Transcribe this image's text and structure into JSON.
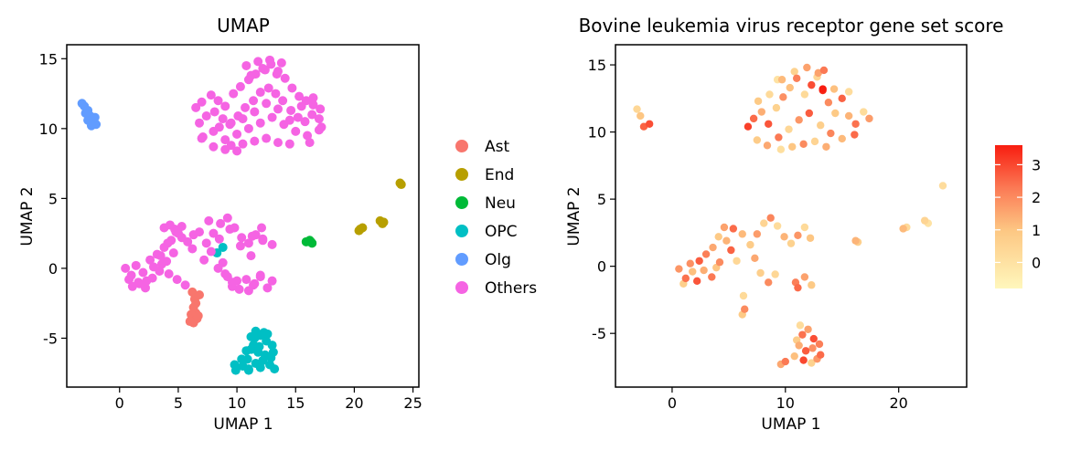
{
  "chart_data": [
    {
      "type": "scatter",
      "title": "UMAP",
      "xlabel": "UMAP 1",
      "ylabel": "UMAP 2",
      "xlim": [
        -4.5,
        25.5
      ],
      "ylim": [
        -8.5,
        16
      ],
      "xticks": [
        0,
        5,
        10,
        15,
        20,
        25
      ],
      "yticks": [
        -5,
        0,
        5,
        10,
        15
      ],
      "xtick_labels": [
        "0",
        "5",
        "10",
        "15",
        "20",
        "25"
      ],
      "ytick_labels": [
        "-5",
        "0",
        "5",
        "10",
        "15"
      ],
      "legend_position": "right",
      "series": [
        {
          "name": "Ast",
          "color": "#F8766D",
          "x": [
            6.2,
            6.4,
            6.1,
            6.5,
            6.3,
            6.6,
            6.0,
            6.7,
            6.3,
            6.4,
            6.2,
            6.8,
            6.5
          ],
          "y": [
            -3.5,
            -3.7,
            -3.3,
            -3.2,
            -3.9,
            -3.6,
            -3.8,
            -3.4,
            -2.8,
            -2.2,
            -1.7,
            -1.9,
            -2.5
          ]
        },
        {
          "name": "End",
          "color": "#B79F00",
          "x": [
            20.4,
            20.7,
            20.5,
            22.2,
            22.5,
            22.4,
            23.9,
            24.0
          ],
          "y": [
            2.7,
            2.9,
            2.8,
            3.4,
            3.3,
            3.2,
            6.1,
            6.0
          ]
        },
        {
          "name": "Neu",
          "color": "#00BA38",
          "x": [
            15.9,
            16.2,
            16.4,
            16.3
          ],
          "y": [
            1.9,
            2.0,
            1.8,
            1.9
          ]
        },
        {
          "name": "OPC",
          "color": "#00BFC4",
          "x": [
            11.5,
            12.0,
            12.5,
            13.0,
            11.2,
            11.8,
            12.4,
            13.1,
            10.9,
            11.6,
            12.2,
            12.8,
            10.5,
            11.0,
            12.0,
            13.2,
            9.8,
            10.4,
            11.4,
            12.6,
            12.9,
            11.9,
            11.2,
            10.8,
            9.9,
            11.0,
            11.6,
            12.3,
            8.3,
            8.8
          ],
          "y": [
            -5.0,
            -4.8,
            -5.2,
            -5.5,
            -5.8,
            -6.0,
            -6.2,
            -6.0,
            -6.5,
            -6.8,
            -6.6,
            -6.9,
            -7.0,
            -7.2,
            -7.1,
            -7.2,
            -6.9,
            -6.5,
            -5.5,
            -4.7,
            -6.4,
            -5.6,
            -4.9,
            -5.9,
            -7.3,
            -7.3,
            -4.5,
            -4.6,
            1.1,
            1.5
          ]
        },
        {
          "name": "Olg",
          "color": "#619CFF",
          "x": [
            -3.2,
            -3.0,
            -2.7,
            -2.5,
            -2.2,
            -2.0,
            -2.4,
            -2.7,
            -2.1,
            -2.9
          ],
          "y": [
            11.8,
            11.6,
            11.3,
            10.9,
            10.5,
            10.3,
            10.2,
            10.6,
            10.8,
            11.1
          ]
        },
        {
          "name": "Others",
          "color": "#F564E3",
          "x": [
            6.5,
            7.0,
            7.8,
            8.4,
            9.0,
            9.7,
            10.3,
            11.0,
            11.6,
            12.2,
            12.9,
            13.5,
            14.1,
            14.7,
            15.3,
            15.9,
            16.5,
            17.1,
            6.8,
            7.4,
            8.1,
            8.8,
            9.4,
            10.1,
            10.7,
            11.4,
            12.0,
            12.7,
            13.3,
            13.9,
            14.6,
            15.2,
            15.8,
            16.4,
            17.0,
            7.1,
            8.0,
            9.0,
            10.0,
            11.0,
            12.0,
            13.0,
            14.0,
            15.0,
            16.0,
            17.0,
            9.5,
            10.5,
            11.5,
            12.5,
            13.5,
            14.5,
            10.8,
            11.8,
            12.8,
            13.8,
            11.2,
            12.4,
            13.4,
            8.5,
            9.5,
            10.5,
            11.5,
            12.5,
            13.5,
            14.5,
            15.5,
            16.5,
            7.0,
            8.0,
            9.0,
            10.0,
            16.2,
            17.2,
            0.5,
            1.0,
            1.6,
            2.2,
            2.8,
            3.4,
            4.0,
            4.6,
            0.8,
            1.4,
            2.0,
            2.6,
            3.2,
            3.8,
            4.4,
            5.0,
            1.1,
            1.7,
            2.3,
            2.9,
            3.5,
            4.1,
            4.7,
            5.3,
            3.8,
            4.3,
            4.8,
            5.3,
            5.8,
            6.3,
            3.6,
            4.2,
            4.9,
            5.6,
            6.2,
            6.8,
            7.4,
            8.0,
            8.6,
            9.2,
            9.8,
            10.4,
            11.0,
            11.6,
            12.2,
            7.2,
            7.8,
            8.4,
            9.0,
            9.6,
            10.2,
            10.8,
            11.4,
            12.0,
            7.6,
            8.5,
            9.4,
            10.3,
            11.2,
            12.1,
            8.8,
            9.2,
            9.6,
            10.0,
            11.0,
            11.5,
            12.0,
            12.6,
            13.0,
            11.3,
            12.2,
            13.0
          ],
          "y": [
            11.5,
            11.9,
            12.4,
            12.0,
            11.6,
            12.5,
            13.0,
            13.5,
            13.9,
            14.3,
            14.6,
            14.1,
            13.6,
            12.9,
            12.3,
            12.0,
            11.7,
            11.4,
            10.4,
            10.9,
            11.2,
            10.7,
            10.3,
            10.9,
            11.5,
            12.0,
            12.6,
            12.9,
            12.5,
            12.0,
            11.3,
            10.8,
            10.5,
            11.0,
            10.7,
            9.4,
            9.8,
            9.2,
            9.6,
            10.0,
            10.4,
            10.8,
            10.3,
            9.8,
            9.5,
            9.9,
            8.8,
            8.9,
            9.1,
            9.3,
            9.0,
            8.9,
            14.5,
            14.8,
            14.9,
            14.7,
            13.8,
            14.2,
            13.9,
            10.1,
            10.4,
            10.7,
            11.2,
            11.8,
            11.4,
            10.6,
            11.6,
            12.2,
            9.3,
            8.7,
            8.5,
            8.4,
            9.0,
            10.1,
            0.0,
            -0.5,
            -1.0,
            -1.4,
            -0.7,
            -0.2,
            0.5,
            1.1,
            -0.8,
            0.2,
            -0.3,
            0.6,
            1.0,
            1.5,
            2.0,
            2.5,
            -1.3,
            -1.1,
            -0.9,
            0.1,
            0.9,
            1.8,
            2.8,
            3.0,
            2.9,
            3.1,
            2.6,
            2.2,
            1.9,
            2.4,
            0.3,
            -0.4,
            -0.8,
            -1.2,
            1.4,
            2.6,
            1.8,
            2.5,
            3.2,
            3.6,
            2.9,
            2.2,
            1.8,
            2.4,
            2.1,
            0.6,
            1.2,
            0.0,
            -0.4,
            -1.0,
            -1.5,
            -0.8,
            -1.2,
            -0.5,
            3.4,
            2.1,
            2.8,
            1.6,
            0.9,
            2.9,
            0.4,
            -0.6,
            -1.3,
            -0.9,
            -1.6,
            -1.1,
            -0.6,
            -1.4,
            -0.9,
            2.3,
            2.0,
            1.7
          ]
        }
      ]
    },
    {
      "type": "scatter",
      "title": "Bovine leukemia virus receptor gene set score",
      "xlabel": "UMAP 1",
      "ylabel": "UMAP 2",
      "xlim": [
        -5,
        26
      ],
      "ylim": [
        -9,
        16.5
      ],
      "xticks": [
        0,
        10,
        20
      ],
      "yticks": [
        -5,
        0,
        5,
        10,
        15
      ],
      "xtick_labels": [
        "0",
        "10",
        "20"
      ],
      "ytick_labels": [
        "-5",
        "0",
        "5",
        "10",
        "15"
      ],
      "color_scale": {
        "min_color": "#FFF7BC",
        "max_color": "#F81D10",
        "range": [
          -0.8,
          3.6
        ],
        "ticks": [
          0,
          1,
          2,
          3
        ],
        "tick_labels": [
          "0",
          "1",
          "2",
          "3"
        ]
      },
      "points": [
        {
          "x": 6.7,
          "y": 10.4,
          "v": 3.1
        },
        {
          "x": 7.2,
          "y": 11.0,
          "v": 2.5
        },
        {
          "x": 7.9,
          "y": 11.5,
          "v": 1.4
        },
        {
          "x": 8.5,
          "y": 10.6,
          "v": 2.8
        },
        {
          "x": 9.2,
          "y": 11.8,
          "v": 0.6
        },
        {
          "x": 9.8,
          "y": 12.6,
          "v": 1.9
        },
        {
          "x": 10.4,
          "y": 13.3,
          "v": 1.1
        },
        {
          "x": 11.0,
          "y": 14.0,
          "v": 2.2
        },
        {
          "x": 11.7,
          "y": 12.8,
          "v": 0.3
        },
        {
          "x": 12.3,
          "y": 13.5,
          "v": 2.9
        },
        {
          "x": 12.9,
          "y": 14.4,
          "v": 1.6
        },
        {
          "x": 13.3,
          "y": 13.1,
          "v": 3.4
        },
        {
          "x": 13.8,
          "y": 12.2,
          "v": 2.0
        },
        {
          "x": 14.4,
          "y": 11.4,
          "v": 0.9
        },
        {
          "x": 15.0,
          "y": 12.5,
          "v": 2.6
        },
        {
          "x": 15.6,
          "y": 11.2,
          "v": 1.3
        },
        {
          "x": 16.2,
          "y": 10.6,
          "v": 2.4
        },
        {
          "x": 16.9,
          "y": 11.5,
          "v": 0.2
        },
        {
          "x": 17.4,
          "y": 11.0,
          "v": 1.7
        },
        {
          "x": 7.5,
          "y": 9.4,
          "v": 0.8
        },
        {
          "x": 8.4,
          "y": 9.0,
          "v": 1.5
        },
        {
          "x": 9.4,
          "y": 9.6,
          "v": 2.3
        },
        {
          "x": 10.3,
          "y": 10.2,
          "v": 0.4
        },
        {
          "x": 11.2,
          "y": 10.9,
          "v": 1.8
        },
        {
          "x": 12.1,
          "y": 11.4,
          "v": 2.7
        },
        {
          "x": 13.1,
          "y": 10.5,
          "v": 0.7
        },
        {
          "x": 14.0,
          "y": 9.9,
          "v": 2.1
        },
        {
          "x": 15.0,
          "y": 9.5,
          "v": 1.2
        },
        {
          "x": 16.1,
          "y": 9.8,
          "v": 2.5
        },
        {
          "x": 9.6,
          "y": 8.7,
          "v": 0.1
        },
        {
          "x": 10.6,
          "y": 8.9,
          "v": 1.0
        },
        {
          "x": 11.6,
          "y": 9.1,
          "v": 2.0
        },
        {
          "x": 12.6,
          "y": 9.3,
          "v": 0.5
        },
        {
          "x": 13.6,
          "y": 8.9,
          "v": 1.4
        },
        {
          "x": 7.6,
          "y": 12.3,
          "v": 0.9
        },
        {
          "x": 8.6,
          "y": 12.8,
          "v": 0.3
        },
        {
          "x": 9.7,
          "y": 13.9,
          "v": 1.2
        },
        {
          "x": 10.8,
          "y": 14.5,
          "v": 0.6
        },
        {
          "x": 11.9,
          "y": 14.8,
          "v": 1.6
        },
        {
          "x": 12.8,
          "y": 14.1,
          "v": 0.4
        },
        {
          "x": 13.4,
          "y": 14.6,
          "v": 2.3
        },
        {
          "x": 14.3,
          "y": 13.2,
          "v": 1.1
        },
        {
          "x": 15.6,
          "y": 13.0,
          "v": 0.2
        },
        {
          "x": 13.3,
          "y": 13.2,
          "v": 3.6
        },
        {
          "x": 9.3,
          "y": 13.9,
          "v": 0.0
        },
        {
          "x": -3.1,
          "y": 11.7,
          "v": 0.4
        },
        {
          "x": -2.8,
          "y": 11.2,
          "v": 1.0
        },
        {
          "x": -2.5,
          "y": 10.4,
          "v": 2.6
        },
        {
          "x": -2.0,
          "y": 10.6,
          "v": 2.9
        },
        {
          "x": 0.6,
          "y": -0.2,
          "v": 1.8
        },
        {
          "x": 1.2,
          "y": -0.9,
          "v": 2.4
        },
        {
          "x": 1.8,
          "y": -0.4,
          "v": 1.1
        },
        {
          "x": 2.4,
          "y": 0.4,
          "v": 2.7
        },
        {
          "x": 3.0,
          "y": 0.9,
          "v": 2.2
        },
        {
          "x": 3.6,
          "y": 1.4,
          "v": 1.5
        },
        {
          "x": 4.2,
          "y": 0.3,
          "v": 2.0
        },
        {
          "x": 4.8,
          "y": 1.9,
          "v": 1.3
        },
        {
          "x": 5.4,
          "y": 2.8,
          "v": 2.5
        },
        {
          "x": 1.0,
          "y": -1.3,
          "v": 0.7
        },
        {
          "x": 1.6,
          "y": 0.2,
          "v": 1.9
        },
        {
          "x": 2.2,
          "y": -1.1,
          "v": 2.8
        },
        {
          "x": 2.8,
          "y": -0.3,
          "v": 1.4
        },
        {
          "x": 3.5,
          "y": -0.8,
          "v": 2.3
        },
        {
          "x": 4.1,
          "y": 2.2,
          "v": 0.9
        },
        {
          "x": 4.6,
          "y": 2.9,
          "v": 1.6
        },
        {
          "x": 5.2,
          "y": 1.2,
          "v": 2.6
        },
        {
          "x": 3.9,
          "y": -0.1,
          "v": 1.0
        },
        {
          "x": 5.7,
          "y": 0.4,
          "v": 0.4
        },
        {
          "x": 6.2,
          "y": 2.4,
          "v": 1.2
        },
        {
          "x": 6.9,
          "y": 1.6,
          "v": 0.8
        },
        {
          "x": 7.5,
          "y": 2.4,
          "v": 1.7
        },
        {
          "x": 8.1,
          "y": 3.2,
          "v": 0.5
        },
        {
          "x": 8.7,
          "y": 3.6,
          "v": 2.1
        },
        {
          "x": 9.3,
          "y": 3.0,
          "v": 0.2
        },
        {
          "x": 9.9,
          "y": 2.2,
          "v": 1.3
        },
        {
          "x": 10.5,
          "y": 1.7,
          "v": 0.6
        },
        {
          "x": 11.1,
          "y": 2.3,
          "v": 1.8
        },
        {
          "x": 11.7,
          "y": 2.9,
          "v": 0.3
        },
        {
          "x": 12.2,
          "y": 2.1,
          "v": 1.0
        },
        {
          "x": 7.3,
          "y": 0.6,
          "v": 1.5
        },
        {
          "x": 7.8,
          "y": -0.5,
          "v": 0.7
        },
        {
          "x": 8.5,
          "y": -1.2,
          "v": 2.0
        },
        {
          "x": 9.1,
          "y": -0.6,
          "v": 0.4
        },
        {
          "x": 10.9,
          "y": -1.2,
          "v": 2.2
        },
        {
          "x": 11.7,
          "y": -0.8,
          "v": 1.6
        },
        {
          "x": 12.3,
          "y": -1.4,
          "v": 0.9
        },
        {
          "x": 11.1,
          "y": -1.6,
          "v": 2.5
        },
        {
          "x": 6.2,
          "y": -3.6,
          "v": 0.9
        },
        {
          "x": 6.4,
          "y": -3.2,
          "v": 2.0
        },
        {
          "x": 6.3,
          "y": -2.2,
          "v": 0.3
        },
        {
          "x": 11.5,
          "y": -5.1,
          "v": 2.4
        },
        {
          "x": 12.0,
          "y": -4.7,
          "v": 1.6
        },
        {
          "x": 12.5,
          "y": -5.4,
          "v": 2.9
        },
        {
          "x": 13.0,
          "y": -5.8,
          "v": 2.2
        },
        {
          "x": 11.2,
          "y": -5.9,
          "v": 1.4
        },
        {
          "x": 11.8,
          "y": -6.3,
          "v": 2.7
        },
        {
          "x": 12.4,
          "y": -6.1,
          "v": 1.9
        },
        {
          "x": 13.1,
          "y": -6.6,
          "v": 2.5
        },
        {
          "x": 10.8,
          "y": -6.7,
          "v": 1.1
        },
        {
          "x": 11.6,
          "y": -7.0,
          "v": 3.0
        },
        {
          "x": 12.3,
          "y": -7.2,
          "v": 0.6
        },
        {
          "x": 12.8,
          "y": -6.9,
          "v": 1.8
        },
        {
          "x": 10.0,
          "y": -7.1,
          "v": 2.3
        },
        {
          "x": 11.0,
          "y": -5.5,
          "v": 0.8
        },
        {
          "x": 9.6,
          "y": -7.3,
          "v": 1.5
        },
        {
          "x": 11.3,
          "y": -4.4,
          "v": 0.2
        },
        {
          "x": 16.2,
          "y": 1.9,
          "v": 1.3
        },
        {
          "x": 16.4,
          "y": 1.8,
          "v": 0.7
        },
        {
          "x": 20.4,
          "y": 2.8,
          "v": 1.2
        },
        {
          "x": 20.7,
          "y": 2.9,
          "v": 0.3
        },
        {
          "x": 22.3,
          "y": 3.4,
          "v": 0.5
        },
        {
          "x": 22.6,
          "y": 3.2,
          "v": 0.0
        },
        {
          "x": 23.9,
          "y": 6.0,
          "v": 0.2
        }
      ]
    }
  ]
}
